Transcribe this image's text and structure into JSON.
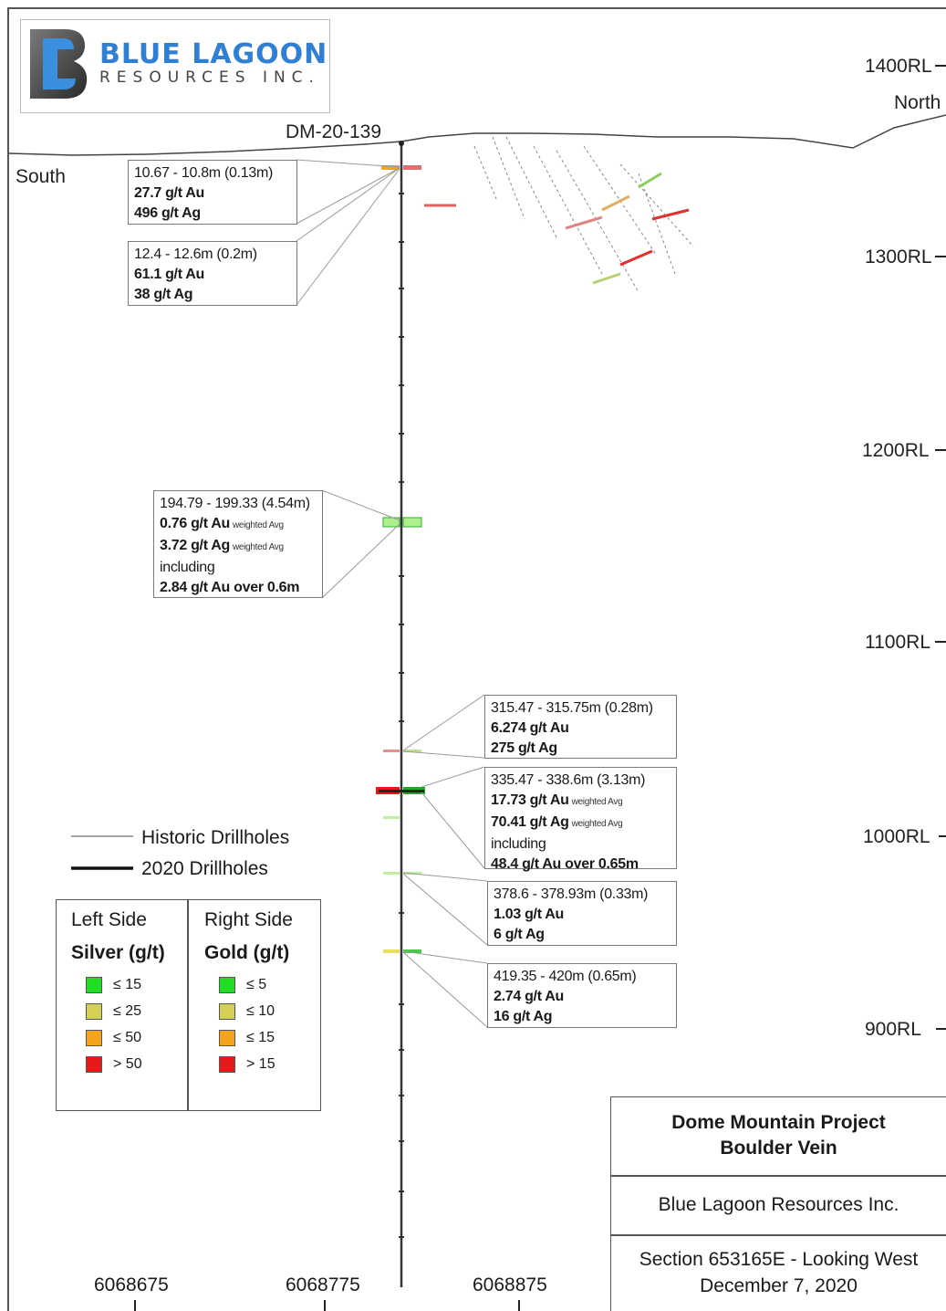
{
  "logo": {
    "name": "BLUE LAGOON",
    "sub": "RESOURCES INC."
  },
  "section": {
    "hole_id": "DM-20-139",
    "south_label": "South",
    "north_label": "North",
    "rl_levels": [
      "1400RL",
      "1300RL",
      "1200RL",
      "1100RL",
      "1000RL",
      "900RL"
    ],
    "eastings": [
      "6068675",
      "6068775",
      "6068875"
    ]
  },
  "intercepts": [
    {
      "interval": "10.67 - 10.8m (0.13m)",
      "lines": [
        {
          "text": "27.7 g/t Au"
        },
        {
          "text": "496 g/t Ag"
        }
      ]
    },
    {
      "interval": "12.4 - 12.6m (0.2m)",
      "lines": [
        {
          "text": "61.1 g/t Au"
        },
        {
          "text": "38 g/t Ag"
        }
      ]
    },
    {
      "interval": "194.79 - 199.33 (4.54m)",
      "lines": [
        {
          "text": "0.76 g/t Au",
          "note": "weighted Avg"
        },
        {
          "text": "3.72 g/t Ag",
          "note": "weighted Avg"
        },
        {
          "plain": "including"
        },
        {
          "text": "2.84 g/t Au over 0.6m"
        }
      ]
    },
    {
      "interval": "315.47 - 315.75m (0.28m)",
      "lines": [
        {
          "text": "6.274 g/t Au"
        },
        {
          "text": "275 g/t Ag"
        }
      ]
    },
    {
      "interval": "335.47 - 338.6m (3.13m)",
      "lines": [
        {
          "text": "17.73 g/t Au",
          "note": "weighted Avg"
        },
        {
          "text": "70.41 g/t Ag",
          "note": "weighted Avg"
        },
        {
          "plain": "including"
        },
        {
          "text": "48.4 g/t Au over 0.65m"
        }
      ]
    },
    {
      "interval": "378.6 - 378.93m (0.33m)",
      "lines": [
        {
          "text": "1.03 g/t Au"
        },
        {
          "text": "6 g/t Ag"
        }
      ]
    },
    {
      "interval": "419.35 - 420m (0.65m)",
      "lines": [
        {
          "text": "2.74 g/t Au"
        },
        {
          "text": "16 g/t Ag"
        }
      ]
    }
  ],
  "legend": {
    "historic": "Historic Drillholes",
    "current": "2020 Drillholes",
    "left_head": "Left Side",
    "left_unit": "Silver (g/t)",
    "right_head": "Right Side",
    "right_unit": "Gold (g/t)",
    "silver": [
      "≤ 15",
      "≤ 25",
      "≤ 50",
      "> 50"
    ],
    "gold": [
      "≤ 5",
      "≤ 10",
      "≤ 15",
      "> 15"
    ],
    "colors": [
      "#22dd22",
      "#d4cf55",
      "#f5a31a",
      "#e61a1a"
    ]
  },
  "title_block": {
    "project": "Dome Mountain Project",
    "vein": "Boulder Vein",
    "company": "Blue Lagoon Resources Inc.",
    "section": "Section 653165E - Looking West",
    "date": "December 7, 2020"
  }
}
